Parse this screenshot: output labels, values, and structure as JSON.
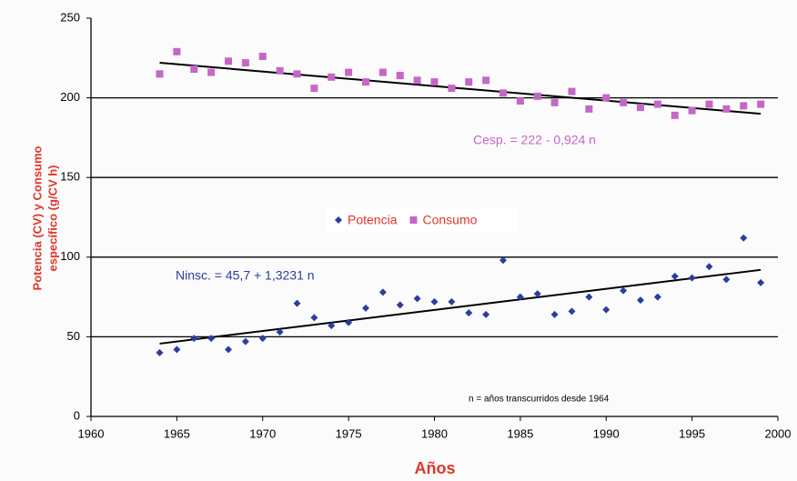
{
  "chart_data": {
    "type": "scatter",
    "x_label": "Años",
    "y_label_lines": [
      "Potencia (CV) y Consumo",
      "específico (g/CV h)"
    ],
    "xlim": [
      1960,
      2000
    ],
    "xticks": [
      1960,
      1965,
      1970,
      1975,
      1980,
      1985,
      1990,
      1995,
      2000
    ],
    "ylim": [
      0,
      250
    ],
    "yticks": [
      0,
      50,
      100,
      150,
      200,
      250
    ],
    "grid": true,
    "legend": "center",
    "x": [
      1964,
      1965,
      1966,
      1967,
      1968,
      1969,
      1970,
      1971,
      1972,
      1973,
      1974,
      1975,
      1976,
      1977,
      1978,
      1979,
      1980,
      1981,
      1982,
      1983,
      1984,
      1985,
      1986,
      1987,
      1988,
      1989,
      1990,
      1991,
      1992,
      1993,
      1994,
      1995,
      1996,
      1997,
      1998,
      1999
    ],
    "series": [
      {
        "name": "Potencia",
        "color": "#2b3d9e",
        "marker": "diamond",
        "values": [
          40,
          42,
          49,
          49,
          42,
          47,
          49,
          53,
          71,
          62,
          57,
          59,
          68,
          78,
          70,
          74,
          72,
          72,
          65,
          64,
          98,
          75,
          77,
          64,
          66,
          75,
          67,
          79,
          73,
          75,
          88,
          87,
          94,
          86,
          112,
          84
        ],
        "trend": {
          "x": [
            1964,
            1999
          ],
          "values": [
            45.7,
            92
          ]
        }
      },
      {
        "name": "Consumo",
        "color": "#c566c8",
        "marker": "square",
        "values": [
          215,
          229,
          218,
          216,
          223,
          222,
          226,
          217,
          215,
          206,
          213,
          216,
          210,
          216,
          214,
          211,
          210,
          206,
          210,
          211,
          203,
          198,
          201,
          197,
          204,
          193,
          200,
          197,
          194,
          196,
          189,
          192,
          196,
          193,
          195,
          196
        ],
        "trend": {
          "x": [
            1964,
            1999
          ],
          "values": [
            222,
            190
          ]
        }
      }
    ],
    "annotations": [
      {
        "text": "Cesp. = 222 - 0,924 n",
        "color": "#c566c8"
      },
      {
        "text": "Ninsc. = 45,7 + 1,3231 n",
        "color": "#2b3d9e"
      },
      {
        "text": "n = años transcurridos desde 1964",
        "color": "#000000"
      }
    ]
  }
}
